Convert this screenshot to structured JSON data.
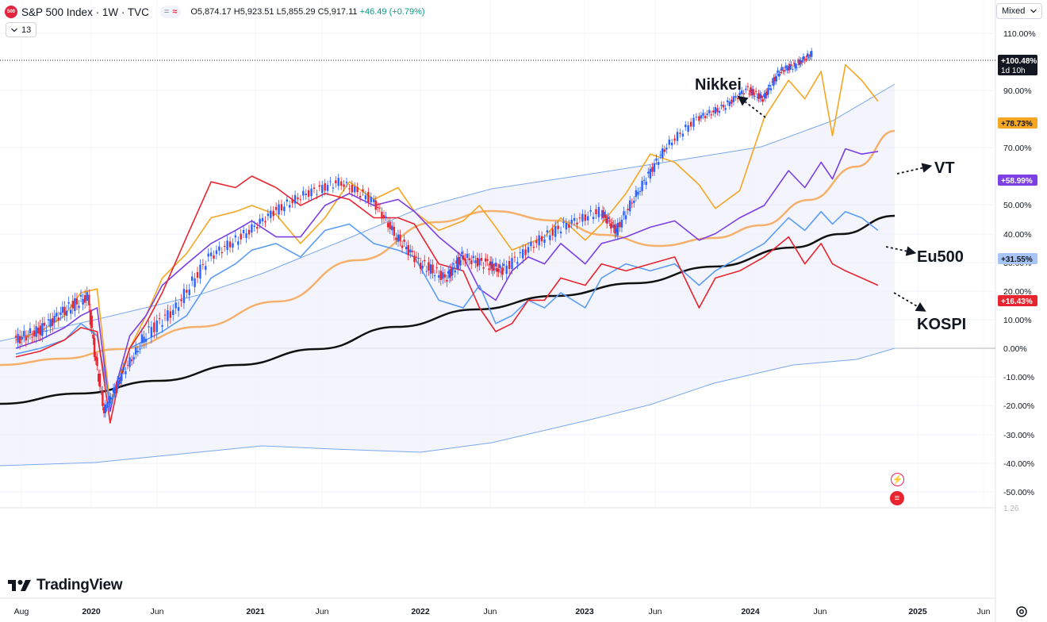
{
  "header": {
    "badge": "500",
    "title": "S&P 500 Index · 1W · TVC",
    "pill_left": "=",
    "pill_right": "≈",
    "open": "O5,874.17",
    "high": "H5,923.51",
    "low": "L5,855.29",
    "close": "C5,917.11",
    "change": "+46.49 (+0.79%)"
  },
  "indicator_button": {
    "icon": "chevron-down",
    "label": "13"
  },
  "scale_mode": {
    "label": "Mixed",
    "icon": "chevron-down"
  },
  "logo": {
    "text": "TradingView"
  },
  "colors": {
    "sp500": "#2962ff",
    "nikkei": "#f5a623",
    "vt": "#7b3fe4",
    "eu500": "#5b9cf5",
    "kospi": "#e8242f",
    "ma_black": "#111111",
    "ma_orange": "#f5b16c",
    "channel": "#7aa7ee",
    "candle_up": "#2962ff",
    "candle_down": "#e8242f"
  },
  "chart_data": {
    "type": "line",
    "xlabel": "",
    "ylabel": "",
    "ylim": [
      -55,
      112
    ],
    "x_ticks": [
      "Aug",
      "2020",
      "Jun",
      "2021",
      "Jun",
      "2022",
      "Jun",
      "2023",
      "Jun",
      "2024",
      "Jun",
      "2025",
      "Jun"
    ],
    "y_ticks": [
      "110.00%",
      "90.00%",
      "70.00%",
      "50.00%",
      "40.00%",
      "30.00%",
      "20.00%",
      "10.00%",
      "0.00%",
      "-10.00%",
      "-20.00%",
      "-30.00%",
      "-40.00%",
      "-50.00%"
    ],
    "x": [
      2019.6,
      2019.75,
      2019.9,
      2020.0,
      2020.1,
      2020.18,
      2020.22,
      2020.3,
      2020.4,
      2020.5,
      2020.65,
      2020.8,
      2020.95,
      2021.05,
      2021.2,
      2021.35,
      2021.5,
      2021.65,
      2021.8,
      2021.95,
      2022.05,
      2022.2,
      2022.35,
      2022.45,
      2022.55,
      2022.65,
      2022.75,
      2022.85,
      2022.95,
      2023.1,
      2023.2,
      2023.35,
      2023.5,
      2023.65,
      2023.8,
      2023.9,
      2024.05,
      2024.2,
      2024.35,
      2024.45,
      2024.55,
      2024.62,
      2024.7,
      2024.8,
      2024.9
    ],
    "series": [
      {
        "name": "Nikkei",
        "values": [
          2,
          4,
          8,
          14,
          15,
          -20,
          -12,
          0,
          8,
          18,
          25,
          36,
          38,
          40,
          37,
          28,
          36,
          48,
          42,
          46,
          38,
          32,
          35,
          40,
          33,
          26,
          28,
          30,
          36,
          29,
          34,
          44,
          58,
          55,
          47,
          39,
          45,
          72,
          88,
          80,
          92,
          65,
          95,
          88,
          79
        ]
      },
      {
        "name": "VT",
        "values": [
          0,
          2,
          5,
          8,
          10,
          -22,
          -12,
          3,
          8,
          16,
          22,
          28,
          32,
          35,
          30,
          30,
          40,
          44,
          40,
          42,
          38,
          30,
          24,
          15,
          12,
          20,
          24,
          22,
          28,
          22,
          28,
          30,
          33,
          35,
          29,
          31,
          36,
          40,
          52,
          46,
          55,
          49,
          60,
          58,
          59
        ]
      },
      {
        "name": "Eu500",
        "values": [
          -2,
          0,
          2,
          6,
          3,
          -20,
          -14,
          0,
          2,
          4,
          8,
          18,
          22,
          26,
          28,
          24,
          32,
          34,
          28,
          26,
          24,
          12,
          10,
          16,
          6,
          8,
          12,
          10,
          14,
          10,
          18,
          22,
          20,
          22,
          16,
          20,
          24,
          28,
          36,
          32,
          38,
          34,
          38,
          36,
          32
        ]
      },
      {
        "name": "KOSPI",
        "values": [
          -3,
          -1,
          2,
          5,
          4,
          -26,
          -15,
          0,
          6,
          14,
          30,
          48,
          46,
          50,
          46,
          40,
          44,
          42,
          36,
          36,
          34,
          22,
          20,
          10,
          4,
          6,
          12,
          12,
          18,
          16,
          22,
          20,
          22,
          24,
          10,
          18,
          20,
          24,
          30,
          22,
          28,
          22,
          20,
          18,
          16
        ]
      }
    ],
    "last_values": {
      "sp500": "+100.48%",
      "nikkei": "+78.73%",
      "vt": "+58.99%",
      "eu500": "+31.55%",
      "kospi": "+16.43%"
    },
    "countdown": "1d 10h",
    "faded_scale_label": "1.26",
    "annotations": [
      "Nikkei",
      "VT",
      "Eu500",
      "KOSPI"
    ]
  }
}
